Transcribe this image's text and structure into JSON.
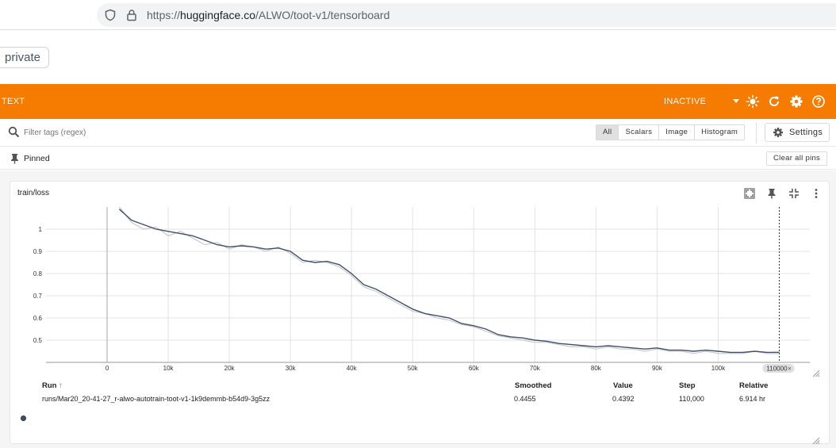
{
  "browser": {
    "url_prefix": "https://",
    "url_host": "huggingface.co",
    "url_path": "/ALWO/toot-v1/tensorboard"
  },
  "space": {
    "visibility_badge": "private"
  },
  "tensorboard": {
    "header": {
      "plugin_label": "TEXT",
      "status": "INACTIVE",
      "icons": [
        "chevron-down-icon",
        "sun-icon",
        "refresh-icon",
        "gear-icon",
        "help-icon"
      ]
    },
    "filter": {
      "placeholder": "Filter tags (regex)",
      "type_buttons": [
        "All",
        "Scalars",
        "Image",
        "Histogram"
      ],
      "active_type": "All",
      "settings_label": "Settings"
    },
    "pinned": {
      "label": "Pinned",
      "clear_label": "Clear all pins"
    },
    "card": {
      "title": "train/loss",
      "icons": [
        "fullscreen-icon",
        "pin-icon",
        "fit-domain-icon",
        "more-vert-icon"
      ]
    },
    "run_table": {
      "headers": {
        "run": "Run",
        "sort_indicator": "↑",
        "smoothed": "Smoothed",
        "value": "Value",
        "step": "Step",
        "relative": "Relative"
      },
      "rows": [
        {
          "run": "runs/Mar20_20-41-27_r-alwo-autotrain-toot-v1-1k9demmb-b54d9-3g5zz",
          "smoothed": "0.4455",
          "value": "0.4392",
          "step": "110,000",
          "relative": "6.914 hr",
          "color": "#425066"
        }
      ]
    }
  },
  "chart_data": {
    "type": "line",
    "title": "train/loss",
    "xlabel": "",
    "ylabel": "",
    "xlim": [
      -10000,
      115000
    ],
    "ylim": [
      0.4,
      1.1
    ],
    "x_ticks": [
      "0",
      "10k",
      "20k",
      "30k",
      "40k",
      "50k",
      "60k",
      "70k",
      "80k",
      "90k",
      "100k"
    ],
    "x_tick_values": [
      0,
      10000,
      20000,
      30000,
      40000,
      50000,
      60000,
      70000,
      80000,
      90000,
      100000
    ],
    "y_ticks": [
      "0.5",
      "0.6",
      "0.7",
      "0.8",
      "0.9",
      "1"
    ],
    "y_tick_values": [
      0.5,
      0.6,
      0.7,
      0.8,
      0.9,
      1.0
    ],
    "grid": true,
    "cursor_step_label": "110000",
    "series": [
      {
        "name": "runs/Mar20_20-41-27_r-alwo-autotrain-toot-v1-1k9demmb-b54d9-3g5zz",
        "color_smoothed": "#425066",
        "color_raw": "#c6cbd3",
        "x": [
          2000,
          4000,
          6000,
          8000,
          10000,
          12000,
          14000,
          16000,
          18000,
          20000,
          22000,
          24000,
          26000,
          28000,
          30000,
          32000,
          34000,
          36000,
          38000,
          40000,
          42000,
          44000,
          46000,
          48000,
          50000,
          52000,
          54000,
          56000,
          58000,
          60000,
          62000,
          64000,
          66000,
          68000,
          70000,
          72000,
          74000,
          76000,
          78000,
          80000,
          82000,
          84000,
          86000,
          88000,
          90000,
          92000,
          94000,
          96000,
          98000,
          100000,
          102000,
          104000,
          106000,
          108000,
          110000
        ],
        "smoothed": [
          1.09,
          1.04,
          1.02,
          1.0,
          0.99,
          0.98,
          0.97,
          0.95,
          0.93,
          0.92,
          0.925,
          0.92,
          0.91,
          0.915,
          0.9,
          0.86,
          0.85,
          0.855,
          0.84,
          0.8,
          0.75,
          0.73,
          0.7,
          0.67,
          0.64,
          0.62,
          0.61,
          0.6,
          0.575,
          0.565,
          0.55,
          0.525,
          0.515,
          0.51,
          0.5,
          0.495,
          0.485,
          0.48,
          0.475,
          0.47,
          0.475,
          0.47,
          0.465,
          0.46,
          0.465,
          0.455,
          0.455,
          0.45,
          0.455,
          0.45,
          0.445,
          0.445,
          0.45,
          0.445,
          0.4455
        ],
        "values": [
          1.1,
          1.03,
          1.0,
          1.01,
          0.97,
          0.99,
          0.96,
          0.93,
          0.94,
          0.91,
          0.93,
          0.92,
          0.9,
          0.92,
          0.89,
          0.85,
          0.86,
          0.85,
          0.83,
          0.79,
          0.74,
          0.72,
          0.69,
          0.66,
          0.63,
          0.62,
          0.6,
          0.59,
          0.57,
          0.56,
          0.54,
          0.52,
          0.51,
          0.5,
          0.49,
          0.49,
          0.48,
          0.47,
          0.47,
          0.46,
          0.47,
          0.46,
          0.46,
          0.45,
          0.46,
          0.45,
          0.45,
          0.44,
          0.45,
          0.44,
          0.44,
          0.44,
          0.45,
          0.44,
          0.4392
        ]
      }
    ]
  }
}
